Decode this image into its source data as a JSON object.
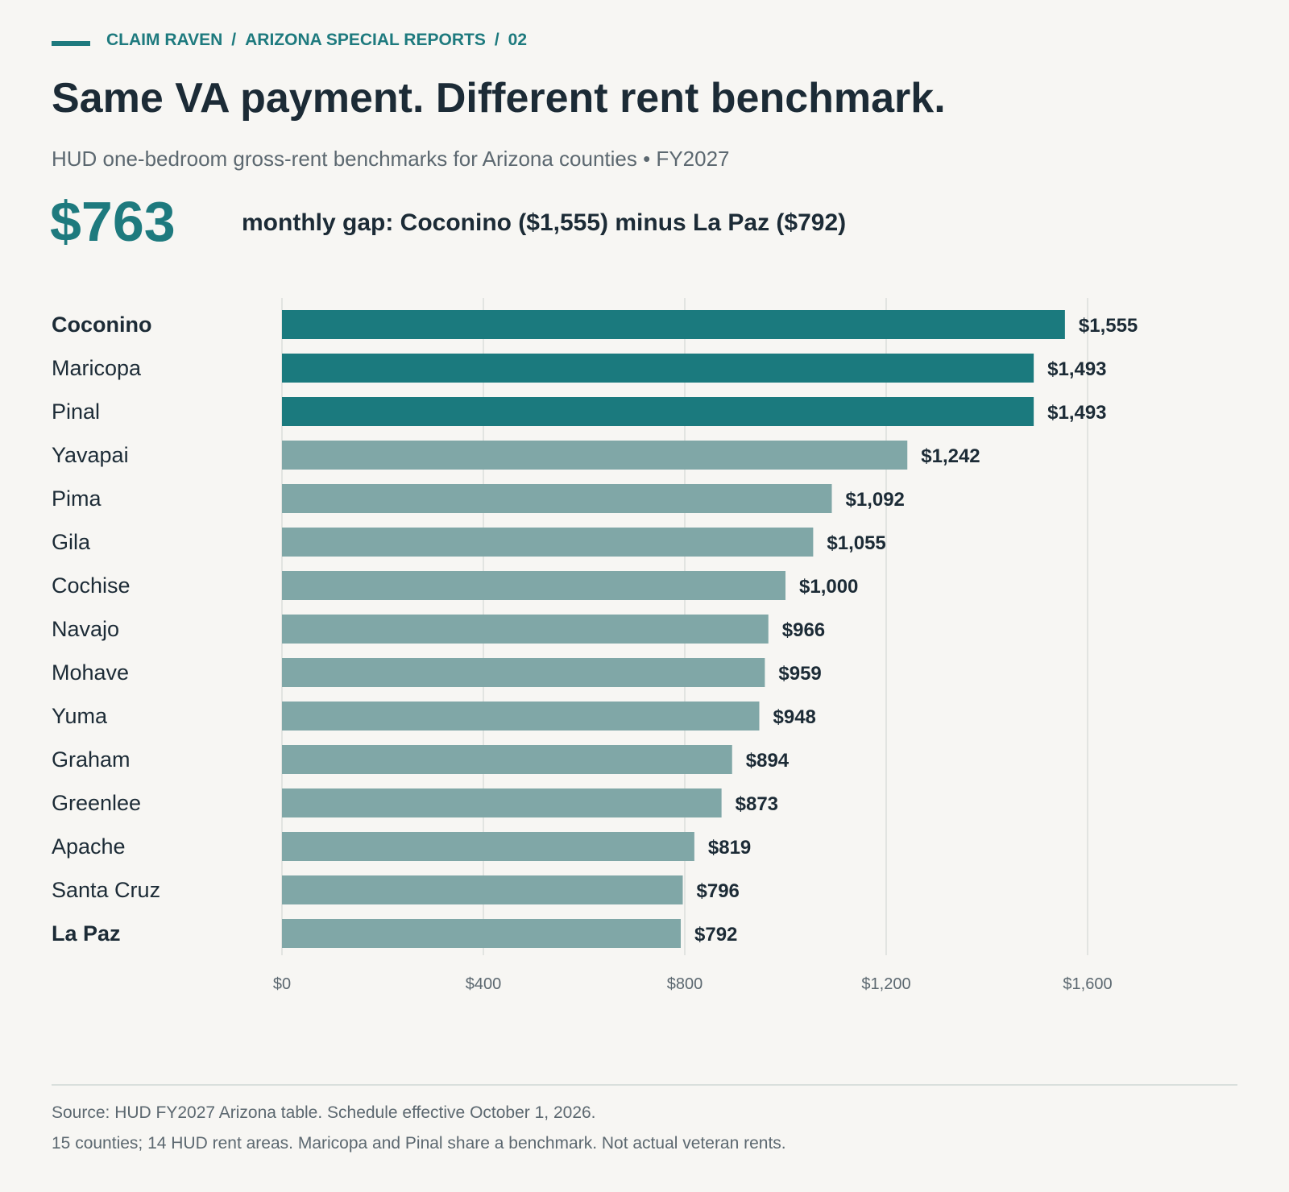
{
  "kicker": {
    "brand": "CLAIM RAVEN",
    "series": "ARIZONA SPECIAL REPORTS",
    "number": "02",
    "separator": "/"
  },
  "title": "Same VA payment. Different rent benchmark.",
  "subtitle": "HUD one-bedroom gross-rent benchmarks for Arizona counties • FY2027",
  "stat": {
    "value": "$763",
    "label": "monthly gap: Coconino ($1,555) minus La Paz ($792)"
  },
  "colors": {
    "accent": "#1e7a7e",
    "bar_highlight": "#1b7a7e",
    "bar_default": "#80a7a7",
    "text_dark": "#1c2b36",
    "text_muted": "#5c6870",
    "grid": "#dcdedb",
    "background": "#f7f6f3"
  },
  "chart_data": {
    "type": "bar",
    "orientation": "horizontal",
    "categories": [
      "Coconino",
      "Maricopa",
      "Pinal",
      "Yavapai",
      "Pima",
      "Gila",
      "Cochise",
      "Navajo",
      "Mohave",
      "Yuma",
      "Graham",
      "Greenlee",
      "Apache",
      "Santa Cruz",
      "La Paz"
    ],
    "values": [
      1555,
      1493,
      1493,
      1242,
      1092,
      1055,
      1000,
      966,
      959,
      948,
      894,
      873,
      819,
      796,
      792
    ],
    "value_labels": [
      "$1,555",
      "$1,493",
      "$1,493",
      "$1,242",
      "$1,092",
      "$1,055",
      "$1,000",
      "$966",
      "$959",
      "$948",
      "$894",
      "$873",
      "$819",
      "$796",
      "$792"
    ],
    "highlighted": [
      true,
      true,
      true,
      false,
      false,
      false,
      false,
      false,
      false,
      false,
      false,
      false,
      false,
      false,
      false
    ],
    "bold_labels": [
      true,
      false,
      false,
      false,
      false,
      false,
      false,
      false,
      false,
      false,
      false,
      false,
      false,
      false,
      true
    ],
    "xlim": [
      0,
      1600
    ],
    "ticks": [
      0,
      400,
      800,
      1200,
      1600
    ],
    "tick_labels": [
      "$0",
      "$400",
      "$800",
      "$1,200",
      "$1,600"
    ],
    "grid": true,
    "title": "",
    "xlabel": "",
    "ylabel": ""
  },
  "footer": {
    "source": "Source: HUD FY2027 Arizona table. Schedule effective October 1, 2026.",
    "note": "15 counties; 14 HUD rent areas. Maricopa and Pinal share a benchmark. Not actual veteran rents."
  }
}
